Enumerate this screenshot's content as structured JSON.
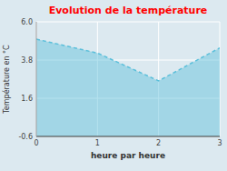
{
  "chart_data": {
    "type": "area",
    "title": "Evolution de la température",
    "x_label": "heure par heure",
    "y_label": "Température en °C",
    "x": [
      0,
      1,
      2,
      3
    ],
    "values": [
      5.0,
      4.2,
      2.6,
      4.5
    ],
    "xlim": [
      0,
      3
    ],
    "ylim": [
      -0.6,
      6.0
    ],
    "xticks": [
      0,
      1,
      2,
      3
    ],
    "yticks": [
      -0.6,
      1.6,
      3.8,
      {
        "value": 6.0,
        "label": "6.0"
      }
    ],
    "color": "#5bbfda",
    "line_style": "dashed",
    "grid": true
  }
}
